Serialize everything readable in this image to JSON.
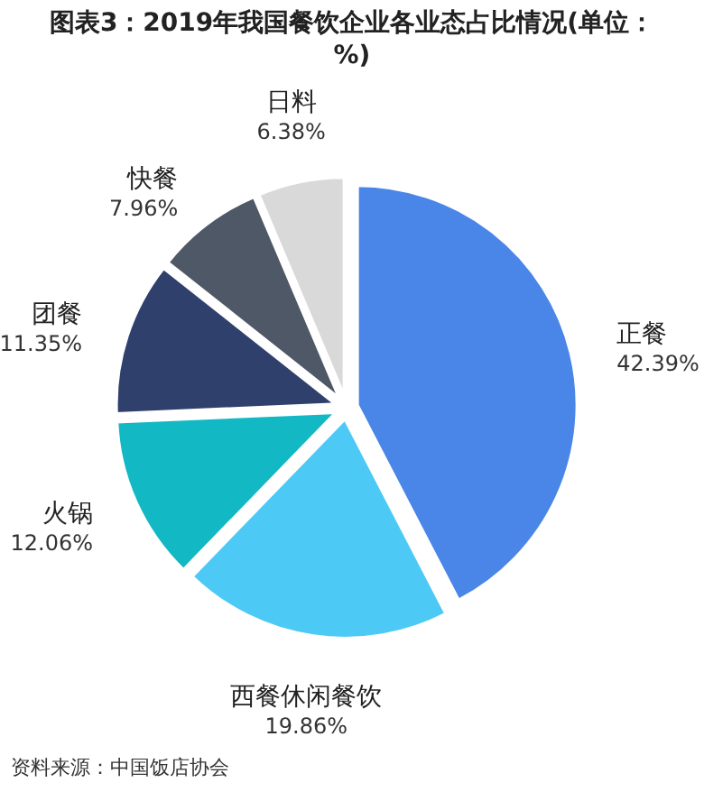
{
  "chart_data": {
    "type": "pie",
    "title": "图表3：2019年我国餐饮企业各业态占比情况(单位：%)",
    "categories": [
      "正餐",
      "西餐休闲餐饮",
      "火锅",
      "团餐",
      "快餐",
      "日料"
    ],
    "values": [
      42.39,
      19.86,
      12.06,
      11.35,
      7.96,
      6.38
    ],
    "value_labels": [
      "42.39%",
      "19.86%",
      "12.06%",
      "11.35%",
      "7.96%",
      "6.38%"
    ],
    "colors": [
      "#4a86e8",
      "#4dc9f6",
      "#12b8c3",
      "#2f406d",
      "#4f5866",
      "#d9d9d9"
    ],
    "annotations": [
      "资料来源：中国饭店协会"
    ]
  }
}
